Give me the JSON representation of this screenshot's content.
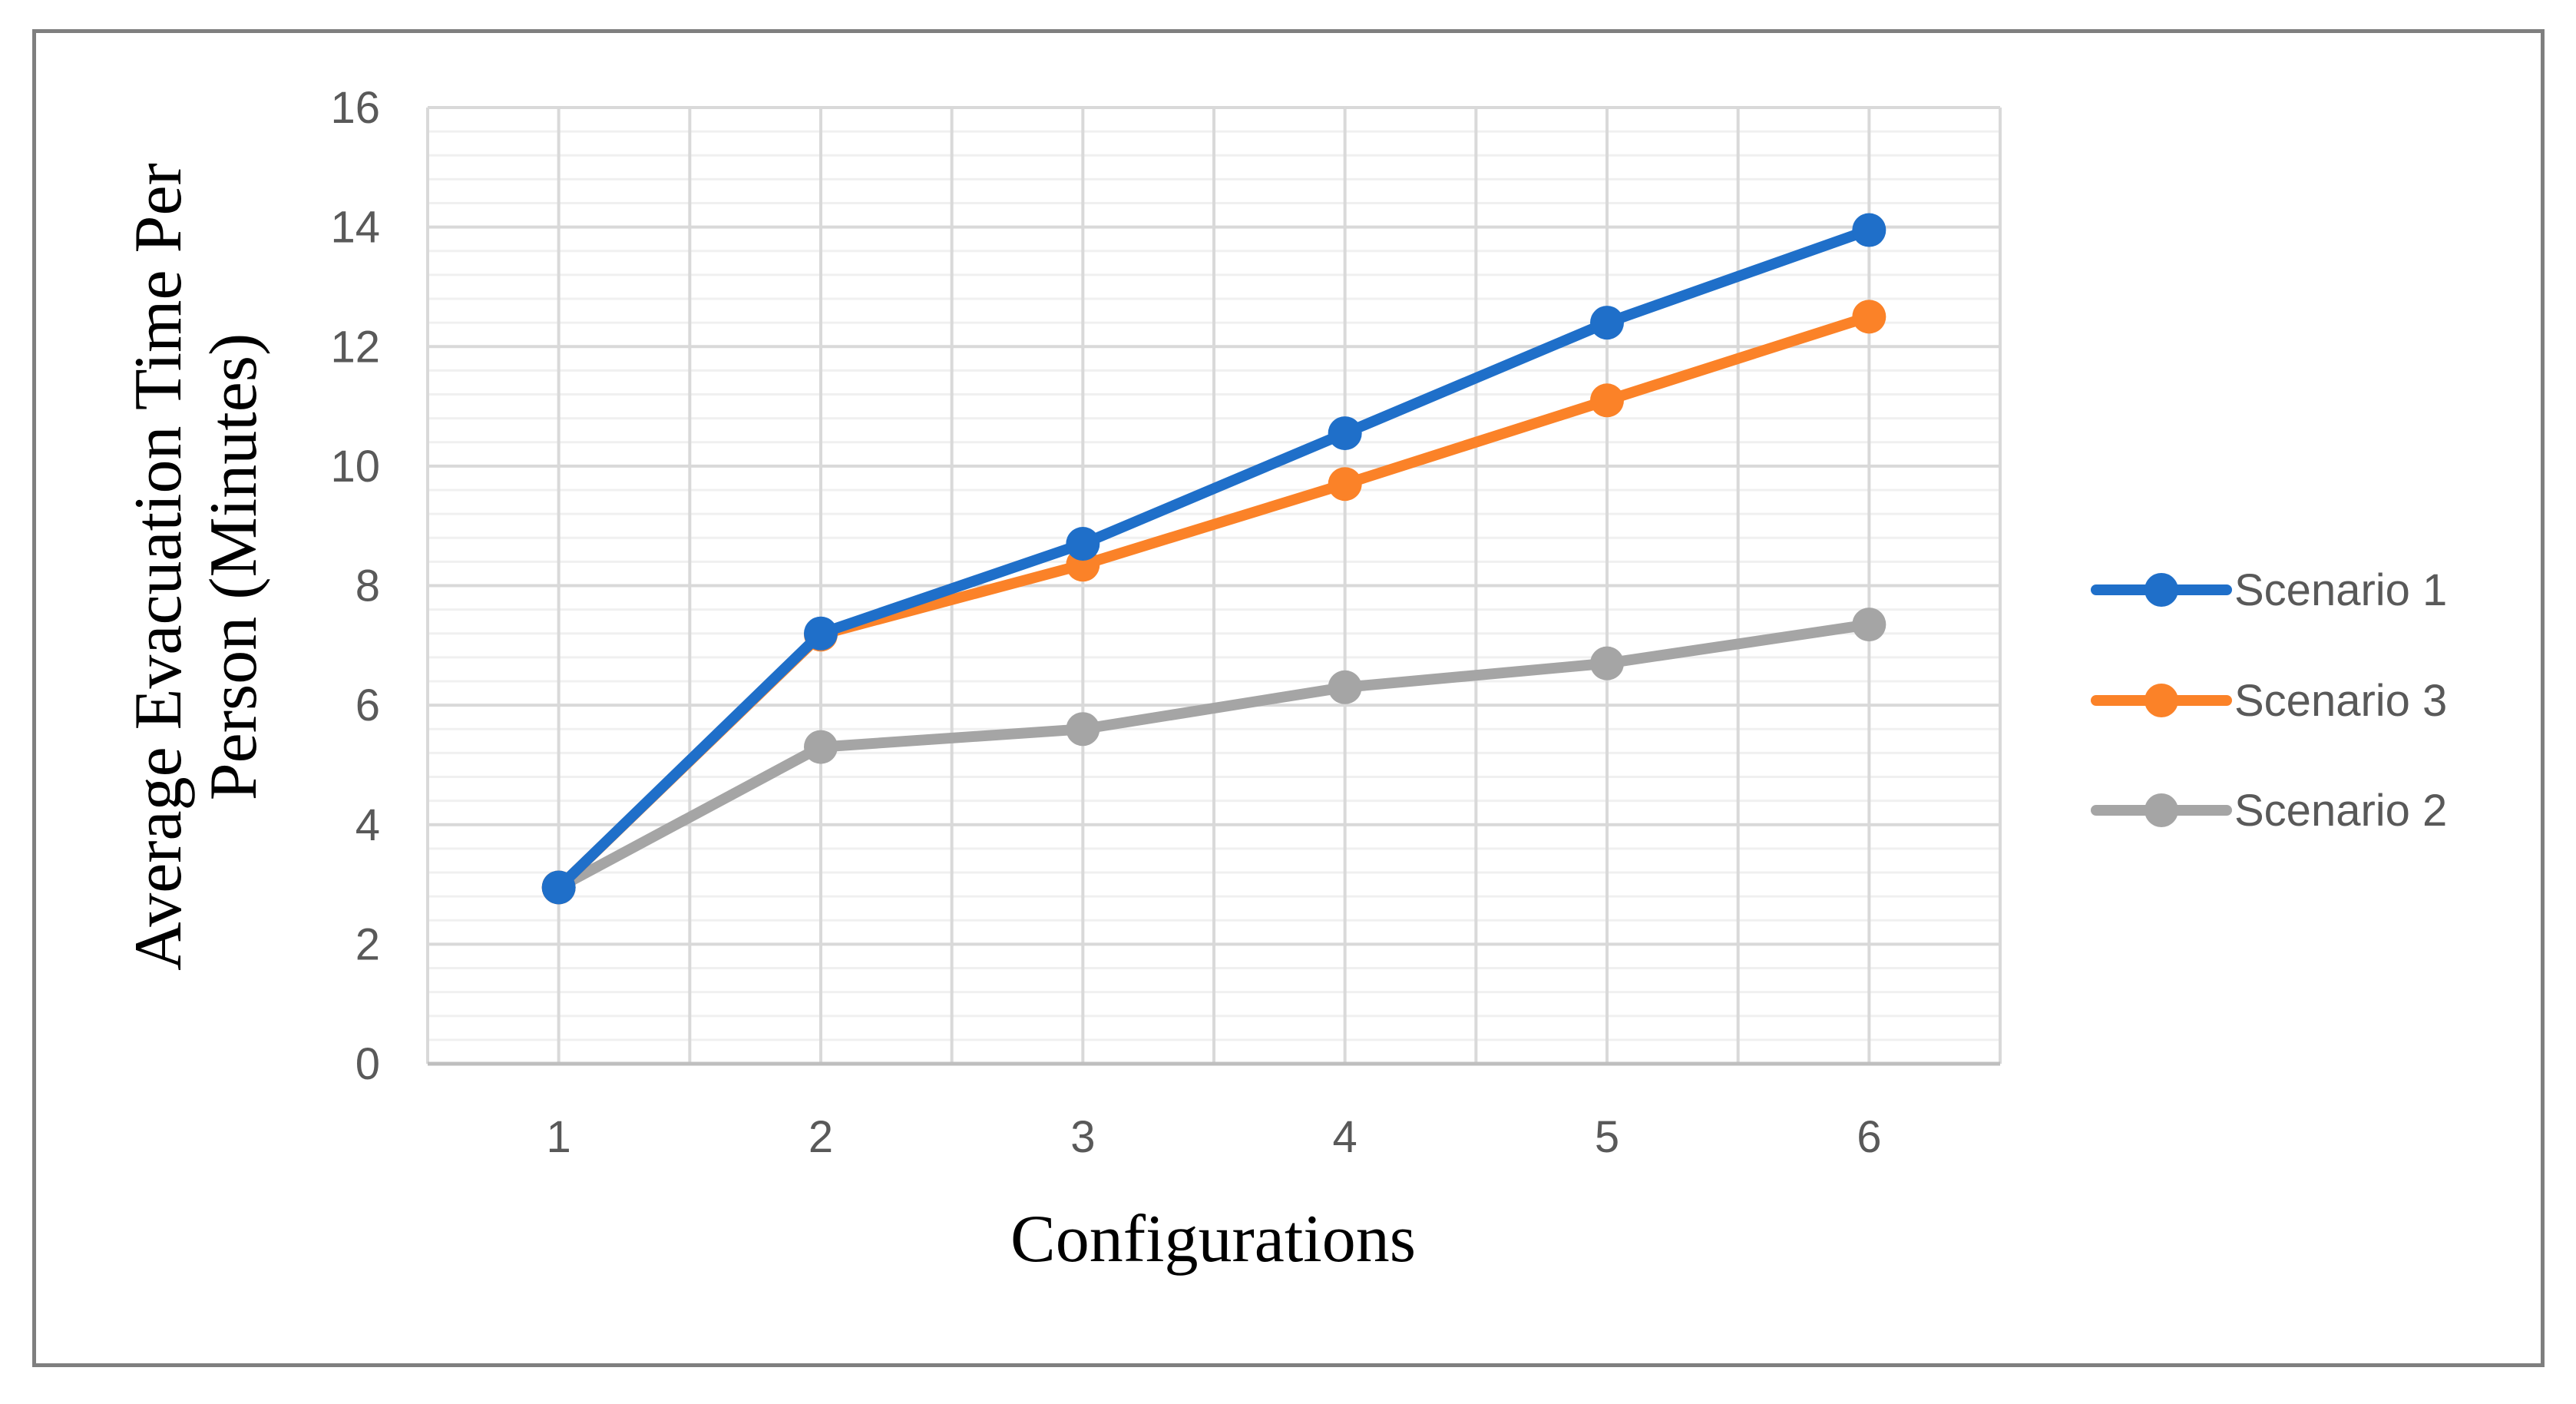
{
  "chart_data": {
    "type": "line",
    "title": "",
    "xlabel": "Configurations",
    "ylabel_lines": [
      "Average Evacuation Time Per",
      "Person (Minutes)"
    ],
    "categories": [
      "1",
      "2",
      "3",
      "4",
      "5",
      "6"
    ],
    "ylim": [
      0,
      16
    ],
    "yticks": [
      0,
      2,
      4,
      6,
      8,
      10,
      12,
      14,
      16
    ],
    "grid": true,
    "legend_placement": "right",
    "series": [
      {
        "name": "Scenario 1",
        "color": "#1f6fc9",
        "values": [
          2.95,
          7.2,
          8.7,
          10.55,
          12.4,
          13.95
        ]
      },
      {
        "name": "Scenario 3",
        "color": "#fb8228",
        "values": [
          2.95,
          7.18,
          8.35,
          9.7,
          11.1,
          12.5
        ]
      },
      {
        "name": "Scenario 2",
        "color": "#a5a5a5",
        "values": [
          2.95,
          5.3,
          5.6,
          6.3,
          6.7,
          7.35
        ]
      }
    ]
  }
}
